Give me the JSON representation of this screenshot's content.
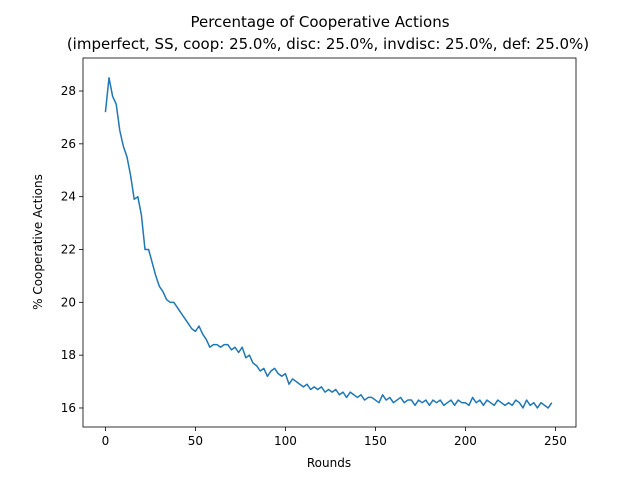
{
  "chart_data": {
    "type": "line",
    "title": "Percentage of Cooperative Actions",
    "subtitle": "(imperfect, SS, coop: 25.0%, disc: 25.0%, invdisc: 25.0%, def: 25.0%)",
    "x_label": "Rounds",
    "y_label": "% Cooperative Actions",
    "xlim": [
      -12.45,
      261.45
    ],
    "ylim": [
      15.28,
      29.25
    ],
    "xticks": [
      0,
      50,
      100,
      150,
      200,
      250
    ],
    "yticks": [
      16,
      18,
      20,
      22,
      24,
      26,
      28
    ],
    "grid": false,
    "x": [
      0,
      2,
      4,
      6,
      8,
      10,
      12,
      14,
      16,
      18,
      20,
      22,
      24,
      26,
      28,
      30,
      32,
      34,
      36,
      38,
      40,
      42,
      44,
      46,
      48,
      50,
      52,
      54,
      56,
      58,
      60,
      62,
      64,
      66,
      68,
      70,
      72,
      74,
      76,
      78,
      80,
      82,
      84,
      86,
      88,
      90,
      92,
      94,
      96,
      98,
      100,
      102,
      104,
      106,
      108,
      110,
      112,
      114,
      116,
      118,
      120,
      122,
      124,
      126,
      128,
      130,
      132,
      134,
      136,
      138,
      140,
      142,
      144,
      146,
      148,
      150,
      152,
      154,
      156,
      158,
      160,
      162,
      164,
      166,
      168,
      170,
      172,
      174,
      176,
      178,
      180,
      182,
      184,
      186,
      188,
      190,
      192,
      194,
      196,
      198,
      200,
      202,
      204,
      206,
      208,
      210,
      212,
      214,
      216,
      218,
      220,
      222,
      224,
      226,
      228,
      230,
      232,
      234,
      236,
      238,
      240,
      242,
      244,
      246,
      248
    ],
    "series": [
      {
        "color": "#1f77b4",
        "values": [
          27.2,
          28.5,
          27.8,
          27.5,
          26.5,
          25.9,
          25.5,
          24.8,
          23.9,
          24.0,
          23.3,
          22.0,
          22.0,
          21.5,
          21.0,
          20.6,
          20.4,
          20.1,
          20.0,
          20.0,
          19.8,
          19.6,
          19.4,
          19.2,
          19.0,
          18.9,
          19.1,
          18.8,
          18.6,
          18.3,
          18.4,
          18.4,
          18.3,
          18.4,
          18.4,
          18.2,
          18.3,
          18.1,
          18.3,
          17.9,
          18.0,
          17.7,
          17.6,
          17.4,
          17.5,
          17.2,
          17.4,
          17.5,
          17.3,
          17.2,
          17.3,
          16.9,
          17.1,
          17.0,
          16.9,
          16.8,
          16.9,
          16.7,
          16.8,
          16.7,
          16.8,
          16.6,
          16.7,
          16.6,
          16.7,
          16.5,
          16.6,
          16.4,
          16.6,
          16.5,
          16.4,
          16.5,
          16.3,
          16.4,
          16.4,
          16.3,
          16.2,
          16.5,
          16.3,
          16.4,
          16.2,
          16.3,
          16.4,
          16.2,
          16.3,
          16.3,
          16.1,
          16.3,
          16.2,
          16.3,
          16.1,
          16.3,
          16.2,
          16.3,
          16.1,
          16.2,
          16.3,
          16.1,
          16.3,
          16.2,
          16.2,
          16.1,
          16.4,
          16.2,
          16.3,
          16.1,
          16.3,
          16.2,
          16.1,
          16.3,
          16.2,
          16.1,
          16.2,
          16.1,
          16.3,
          16.2,
          16.0,
          16.3,
          16.1,
          16.2,
          16.0,
          16.2,
          16.1,
          16.0,
          16.2
        ]
      }
    ]
  }
}
